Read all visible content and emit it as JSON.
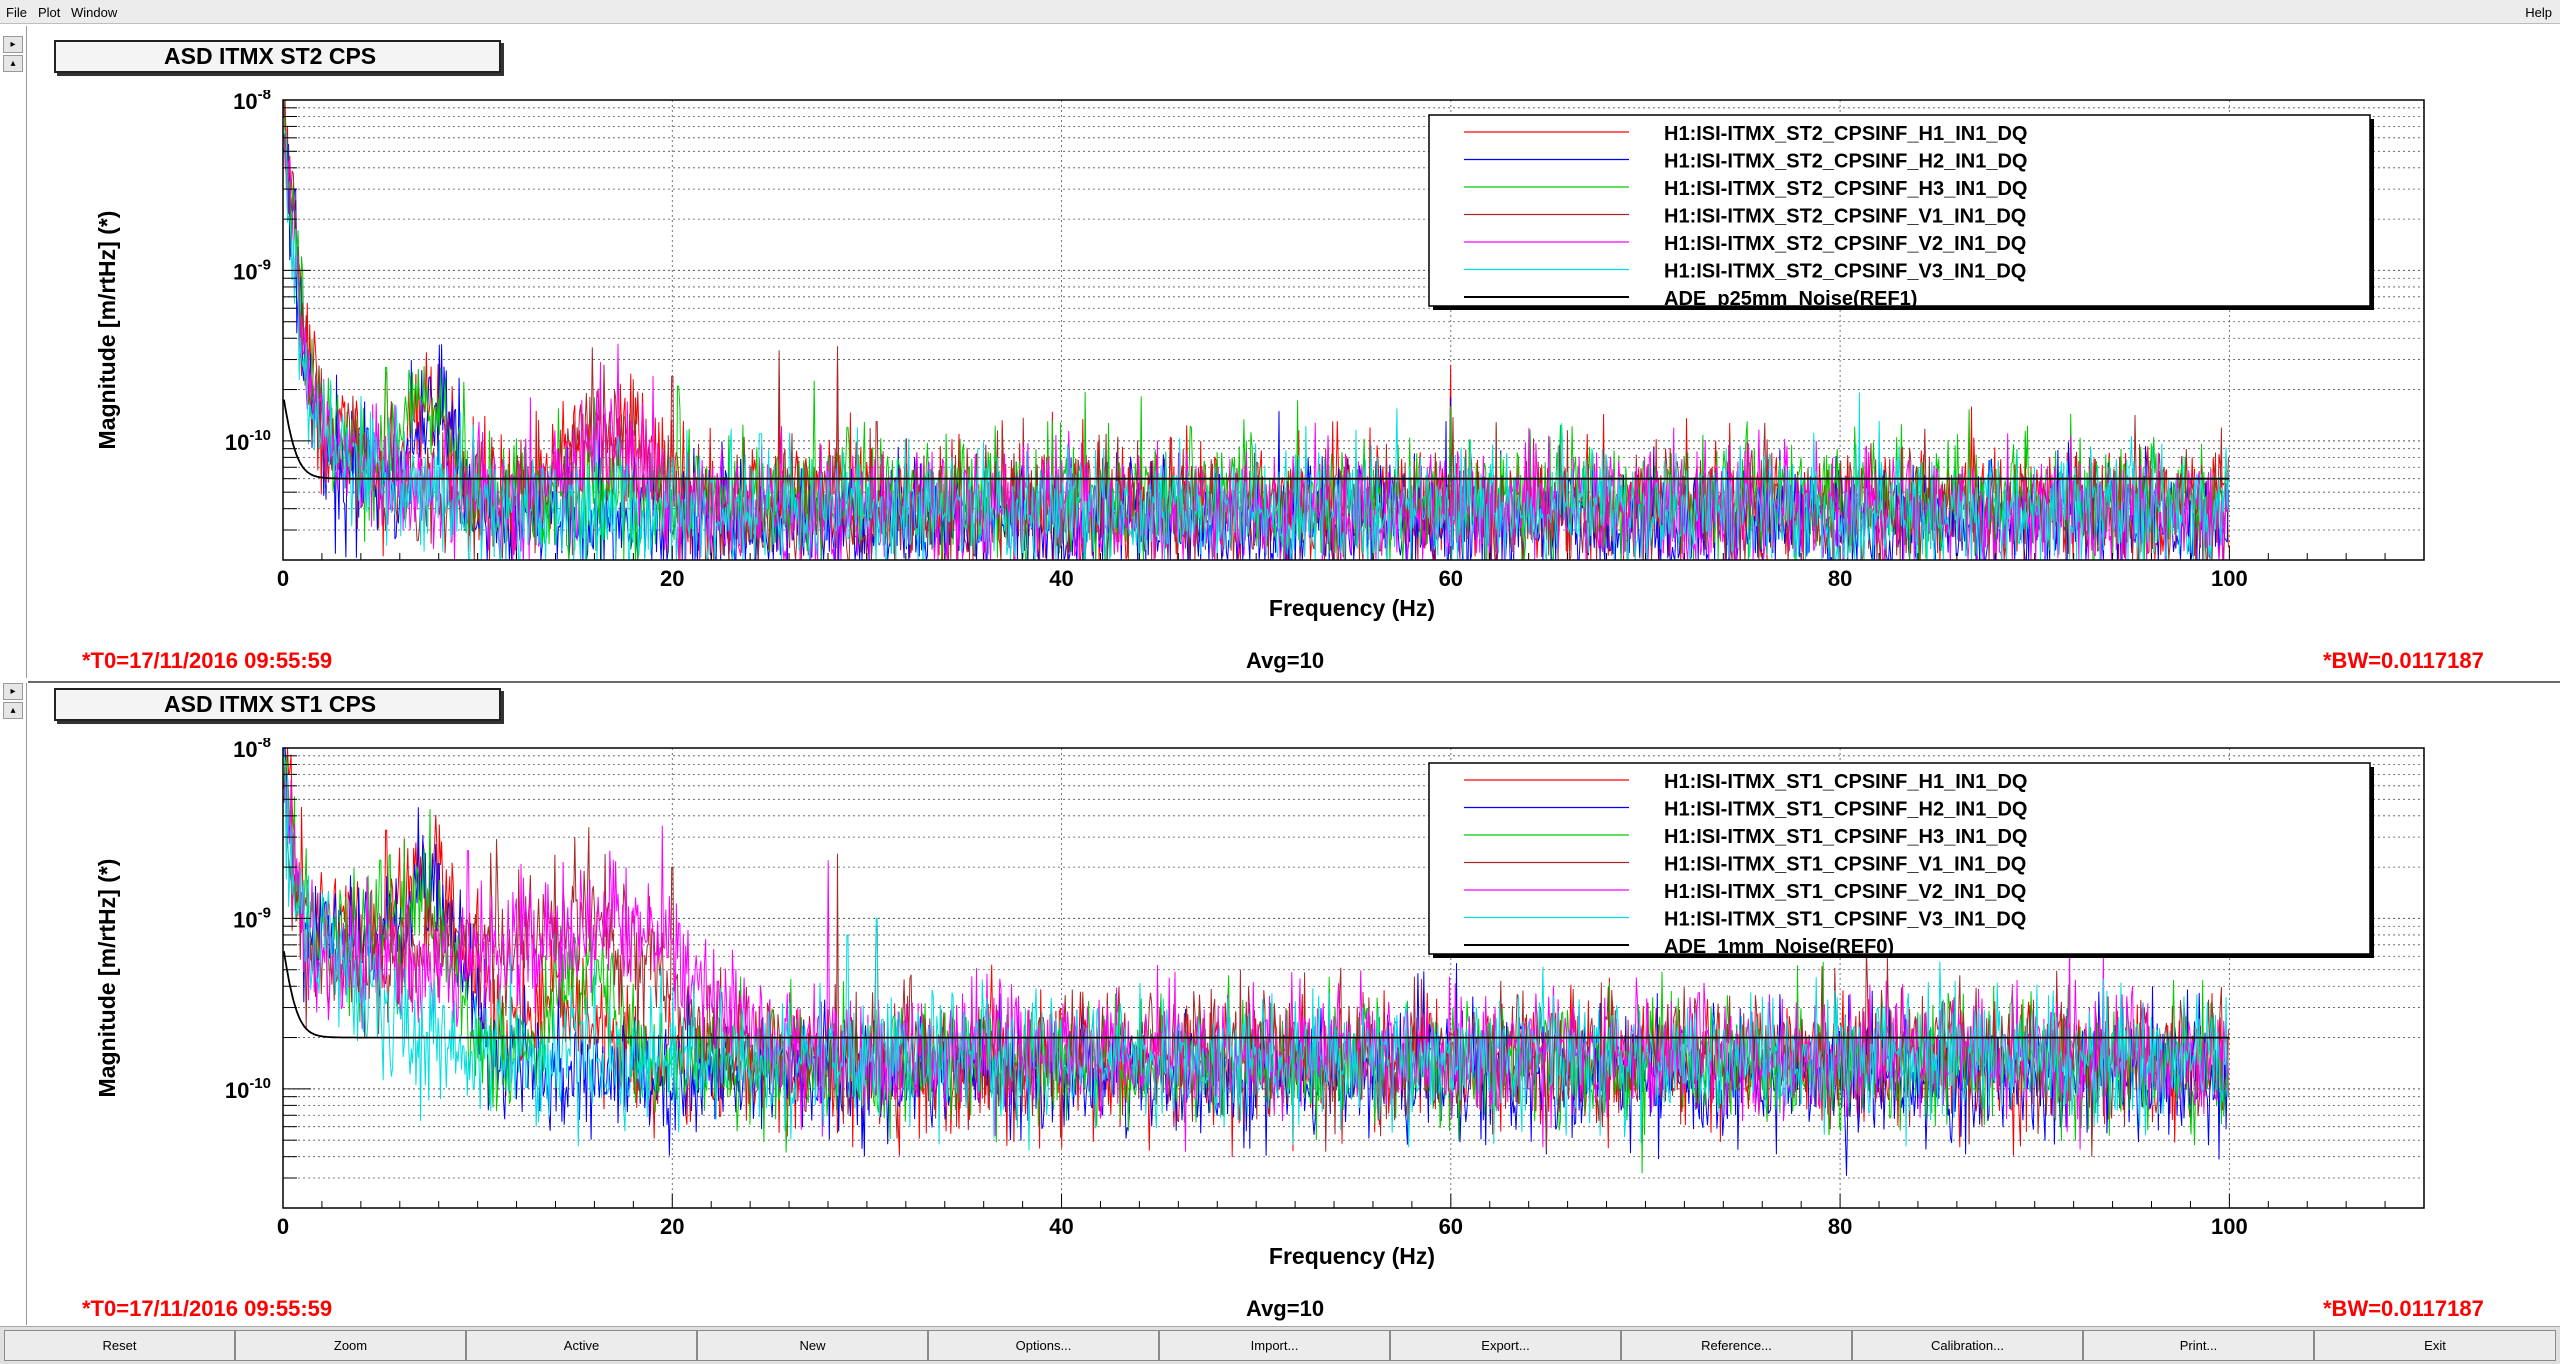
{
  "menubar": {
    "items": [
      "File",
      "Plot",
      "Window"
    ],
    "help": "Help"
  },
  "panels": [
    {
      "title": "ASD ITMX ST2 CPS",
      "t0": "*T0=17/11/2016 09:55:59",
      "avg": "Avg=10",
      "bw": "*BW=0.0117187"
    },
    {
      "title": "ASD ITMX ST1 CPS",
      "t0": "*T0=17/11/2016 09:55:59",
      "avg": "Avg=10",
      "bw": "*BW=0.0117187"
    }
  ],
  "chart_data": [
    {
      "type": "line",
      "title": "ASD ITMX ST2 CPS",
      "xlabel": "Frequency (Hz)",
      "ylabel": "Magnitude [m/rtHz] (*)",
      "xlim": [
        0,
        110
      ],
      "ylim": [
        2e-11,
        1e-08
      ],
      "yscale": "log",
      "grid": true,
      "legend_position": "top-right",
      "x_ticks": [
        "0",
        "20",
        "40",
        "60",
        "80",
        "100"
      ],
      "y_ticks": [
        {
          "base": "10",
          "exp": "-8",
          "value": 1e-08
        },
        {
          "base": "10",
          "exp": "-9",
          "value": 1e-09
        },
        {
          "base": "10",
          "exp": "-10",
          "value": 1e-10
        }
      ],
      "series": [
        {
          "name": "H1:ISI-ITMX_ST2_CPSINF_H1_IN1_DQ",
          "color": "#ff0000",
          "noise_floor": 4.2e-11,
          "low_freq": 1e-08,
          "bumps": [
            [
              7.5,
              0.8,
              1.1e-10
            ],
            [
              17,
              2.0,
              6e-11
            ]
          ],
          "peaks": [
            [
              5.3,
              2.5e-10
            ],
            [
              13,
              1.5e-10
            ],
            [
              25.5,
              2.5e-10
            ],
            [
              28.5,
              3e-10
            ],
            [
              60,
              2.8e-10
            ]
          ]
        },
        {
          "name": "H1:ISI-ITMX_ST2_CPSINF_H2_IN1_DQ",
          "color": "#0000ff",
          "noise_floor": 3.3e-11,
          "low_freq": 8e-09,
          "bumps": [
            [
              7.8,
              0.8,
              1.3e-10
            ]
          ],
          "peaks": [
            [
              7.9,
              1.6e-10
            ],
            [
              60,
              1.8e-10
            ]
          ]
        },
        {
          "name": "H1:ISI-ITMX_ST2_CPSINF_H3_IN1_DQ",
          "color": "#00cc00",
          "noise_floor": 4.6e-11,
          "low_freq": 9e-09,
          "bumps": [
            [
              7.5,
              1.0,
              1.1e-10
            ]
          ],
          "peaks": [
            [
              5.3,
              2.7e-10
            ],
            [
              16,
              1.8e-10
            ],
            [
              20.3,
              2.1e-10
            ],
            [
              29,
              1.2e-10
            ],
            [
              60,
              1.6e-10
            ]
          ]
        },
        {
          "name": "H1:ISI-ITMX_ST2_CPSINF_V1_IN1_DQ",
          "color": "#a52a2a",
          "noise_floor": 4e-11,
          "low_freq": 6e-09,
          "bumps": [
            [
              16.5,
              1.5,
              7e-11
            ]
          ],
          "peaks": [
            [
              16.5,
              2.8e-10
            ],
            [
              18,
              2.3e-10
            ],
            [
              20,
              2.4e-10
            ],
            [
              25.5,
              3.4e-10
            ],
            [
              28.5,
              3.6e-10
            ],
            [
              30.5,
              1.3e-10
            ]
          ]
        },
        {
          "name": "H1:ISI-ITMX_ST2_CPSINF_V2_IN1_DQ",
          "color": "#ff00ff",
          "noise_floor": 3.9e-11,
          "low_freq": 7e-09,
          "bumps": [
            [
              16.5,
              1.5,
              6e-11
            ]
          ],
          "peaks": [
            [
              12.7,
              1.8e-10
            ],
            [
              16.3,
              2.9e-10
            ],
            [
              19,
              2.4e-10
            ]
          ]
        },
        {
          "name": "H1:ISI-ITMX_ST2_CPSINF_V3_IN1_DQ",
          "color": "#00e0e0",
          "noise_floor": 3.8e-11,
          "low_freq": 5e-09,
          "bumps": [],
          "peaks": [
            [
              24.5,
              1.1e-10
            ],
            [
              29.5,
              1.2e-10
            ]
          ]
        },
        {
          "name": "ADE_p25mm_Noise(REF1)",
          "color": "#000000",
          "reference": true,
          "level": 6e-11,
          "low_freq": 1.3e-10
        }
      ]
    },
    {
      "type": "line",
      "title": "ASD ITMX ST1 CPS",
      "xlabel": "Frequency (Hz)",
      "ylabel": "Magnitude [m/rtHz] (*)",
      "xlim": [
        0,
        110
      ],
      "ylim": [
        2e-11,
        1e-08
      ],
      "yscale": "log",
      "grid": true,
      "legend_position": "top-right",
      "x_ticks": [
        "0",
        "20",
        "40",
        "60",
        "80",
        "100"
      ],
      "y_ticks": [
        {
          "base": "10",
          "exp": "-8",
          "value": 1e-08
        },
        {
          "base": "10",
          "exp": "-9",
          "value": 1e-09
        },
        {
          "base": "10",
          "exp": "-10",
          "value": 1e-10
        }
      ],
      "series": [
        {
          "name": "H1:ISI-ITMX_ST1_CPSINF_H1_IN1_DQ",
          "color": "#ff0000",
          "noise_floor": 1.35e-10,
          "low_freq": 1e-08,
          "bumps": [
            [
              3,
              2.0,
              6e-10
            ],
            [
              7.5,
              1.3,
              1.6e-09
            ],
            [
              14,
              1.5,
              2.5e-10
            ]
          ],
          "peaks": [
            [
              5.3,
              3.3e-09
            ],
            [
              10,
              1.5e-09
            ],
            [
              13.5,
              4e-10
            ]
          ]
        },
        {
          "name": "H1:ISI-ITMX_ST1_CPSINF_H2_IN1_DQ",
          "color": "#0000ff",
          "noise_floor": 1.2e-10,
          "low_freq": 9e-09,
          "bumps": [
            [
              3,
              2.0,
              5e-10
            ],
            [
              7.3,
              1.3,
              1.3e-09
            ]
          ],
          "peaks": [
            [
              5.5,
              1.4e-09
            ],
            [
              8,
              2.1e-09
            ]
          ]
        },
        {
          "name": "H1:ISI-ITMX_ST1_CPSINF_H3_IN1_DQ",
          "color": "#00cc00",
          "noise_floor": 1.45e-10,
          "low_freq": 9e-09,
          "bumps": [
            [
              2.5,
              2.0,
              4e-10
            ],
            [
              6.8,
              1.3,
              1.1e-09
            ],
            [
              15.5,
              1.2,
              4e-10
            ]
          ],
          "peaks": [
            [
              5,
              2.2e-09
            ],
            [
              15.8,
              9e-10
            ]
          ]
        },
        {
          "name": "H1:ISI-ITMX_ST1_CPSINF_V1_IN1_DQ",
          "color": "#a52a2a",
          "noise_floor": 1.6e-10,
          "low_freq": 7e-09,
          "bumps": [
            [
              10,
              4.0,
              5e-10
            ],
            [
              16,
              2.5,
              6e-10
            ]
          ],
          "peaks": [
            [
              15,
              3e-09
            ],
            [
              17.5,
              1.6e-09
            ],
            [
              20,
              2e-09
            ],
            [
              28.5,
              2.4e-09
            ],
            [
              30.5,
              9e-10
            ]
          ]
        },
        {
          "name": "H1:ISI-ITMX_ST1_CPSINF_V2_IN1_DQ",
          "color": "#ff00ff",
          "noise_floor": 1.65e-10,
          "low_freq": 7e-09,
          "bumps": [
            [
              10,
              4.5,
              4e-10
            ],
            [
              17.5,
              3.0,
              6e-10
            ]
          ],
          "peaks": [
            [
              9.5,
              2.5e-09
            ],
            [
              16.8,
              2.5e-09
            ],
            [
              19.5,
              3.5e-09
            ],
            [
              28,
              2.2e-09
            ]
          ]
        },
        {
          "name": "H1:ISI-ITMX_ST1_CPSINF_V3_IN1_DQ",
          "color": "#00e0e0",
          "noise_floor": 1.5e-10,
          "low_freq": 6e-09,
          "bumps": [
            [
              2,
              1.5,
              2.5e-10
            ]
          ],
          "peaks": [
            [
              30.5,
              1e-09
            ],
            [
              29,
              8e-10
            ],
            [
              55.5,
              3e-10
            ]
          ]
        },
        {
          "name": "ADE_1mm_Noise(REF0)",
          "color": "#000000",
          "reference": true,
          "level": 2e-10,
          "low_freq": 5e-10
        }
      ]
    }
  ],
  "toolbar": [
    "Reset",
    "Zoom",
    "Active",
    "New",
    "Options...",
    "Import...",
    "Export...",
    "Reference...",
    "Calibration...",
    "Print...",
    "Exit"
  ]
}
